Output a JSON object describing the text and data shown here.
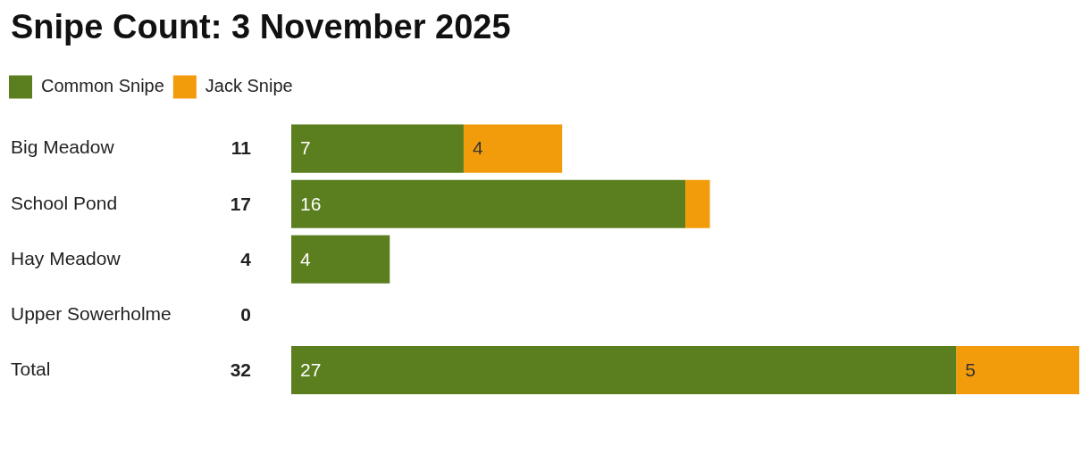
{
  "chart_data": {
    "type": "bar",
    "title": "Snipe Count: 3 November 2025",
    "orientation": "horizontal",
    "stacked": true,
    "categories": [
      "Big Meadow",
      "School Pond",
      "Hay Meadow",
      "Upper Sowerholme",
      "Total"
    ],
    "series": [
      {
        "name": "Common Snipe",
        "color": "#5b7f1f",
        "values": [
          7,
          16,
          4,
          0,
          27
        ],
        "value_labels": [
          "7",
          "16",
          "4",
          null,
          "27"
        ]
      },
      {
        "name": "Jack Snipe",
        "color": "#f39c0b",
        "values": [
          4,
          1,
          0,
          0,
          5
        ],
        "value_labels": [
          "4",
          null,
          null,
          null,
          "5"
        ]
      }
    ],
    "totals": [
      "11",
      "17",
      "4",
      "0",
      "32"
    ],
    "legend": "top left",
    "tick_labels": "y"
  }
}
